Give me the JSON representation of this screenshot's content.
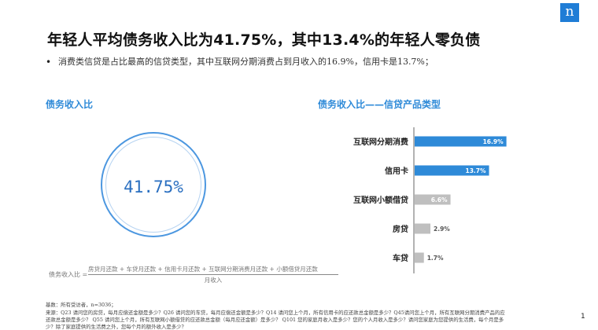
{
  "logo_text": "n",
  "title": "年轻人平均债务收入比为41.75%，其中13.4%的年轻人零负债",
  "bullet": "消费类信贷是占比最高的信贷类型，其中互联网分期消费占到月收入的16.9%，信用卡是13.7%；",
  "left_section": {
    "title": "债务收入比",
    "value": "41.75%",
    "formula_lhs": "债务收入比 =",
    "formula_numerator": "房贷月还款 + 车贷月还款 + 信用卡月还款 + 互联网分期消费月还款 + 小额借贷月还款",
    "formula_denominator": "月收入"
  },
  "right_section": {
    "title": "债务收入比——信贷产品类型"
  },
  "colors": {
    "accent": "#2e8ad8",
    "bar_highlight": "#2e8ad8",
    "bar_muted": "#bfbfbf"
  },
  "chart_data": {
    "type": "bar",
    "orientation": "horizontal",
    "categories": [
      "互联网分期消费",
      "信用卡",
      "互联网小额借贷",
      "房贷",
      "车贷"
    ],
    "values": [
      16.9,
      13.7,
      6.6,
      2.9,
      1.7
    ],
    "labels": [
      "16.9%",
      "13.7%",
      "6.6%",
      "2.9%",
      "1.7%"
    ],
    "highlighted": [
      true,
      true,
      false,
      false,
      false
    ],
    "xlim": [
      0,
      20
    ]
  },
  "footnotes": [
    "基数：所有受访者，n=3036；",
    "来源：Q23 请问您的房贷，每月应偿还金额是多少？Q26 请问您的车贷，每月应偿还金额是多少？Q14 请问您上个月，所有信用卡的应还款总金额是多少？Q45请问您上个月，所有互联网分期消费产品的应",
    "还款总金额是多少？ Q55 请问您上个月，所有互联网小额借贷的应还款总金额（每月应还金额）是多少？ Q101 您的家庭月收入是多少？您的个人月收入是多少？请问您家庭为您提供的生活费，每个月是多",
    "少？除了家庭提供的生活费之外，您每个月的额外收入是多少？"
  ],
  "page_number": "1"
}
